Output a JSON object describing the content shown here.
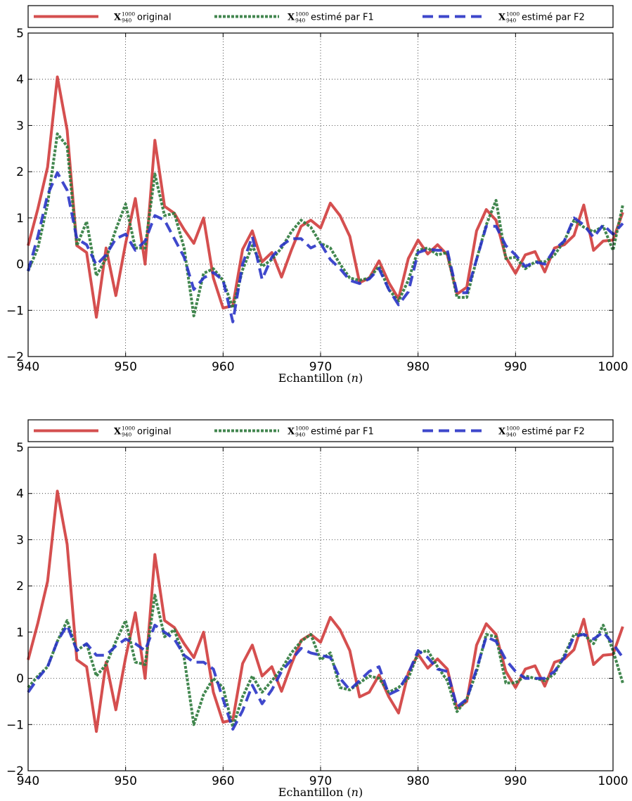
{
  "chart_data": [
    {
      "type": "line",
      "xlabel": "Echantillon (n)",
      "ylabel": "",
      "xlim": [
        940,
        1000
      ],
      "ylim": [
        -2,
        5
      ],
      "x_ticks": [
        "940",
        "950",
        "960",
        "970",
        "980",
        "990",
        "1000"
      ],
      "y_ticks": [
        "−2",
        "−1",
        "0",
        "1",
        "2",
        "3",
        "4",
        "5"
      ],
      "grid": true,
      "legend_position": "top",
      "x_start": 940,
      "series": [
        {
          "name": "X₉₄₀¹⁰⁰⁰ original",
          "legend_symbol": "X",
          "legend_sup": "1000",
          "legend_sub": "940",
          "legend_text": "original",
          "color": "#d03c3c",
          "dash": "solid",
          "values": [
            0.4,
            1.2,
            2.1,
            4.05,
            2.9,
            0.4,
            0.25,
            -1.15,
            0.35,
            -0.68,
            0.45,
            1.42,
            0.0,
            2.68,
            1.25,
            1.1,
            0.75,
            0.45,
            1.0,
            -0.3,
            -0.95,
            -0.9,
            0.32,
            0.72,
            0.05,
            0.25,
            -0.28,
            0.3,
            0.82,
            0.95,
            0.78,
            1.32,
            1.05,
            0.6,
            -0.4,
            -0.3,
            0.07,
            -0.4,
            -0.75,
            0.12,
            0.52,
            0.22,
            0.42,
            0.2,
            -0.65,
            -0.5,
            0.72,
            1.18,
            0.95,
            0.15,
            -0.2,
            0.2,
            0.27,
            -0.17,
            0.35,
            0.42,
            0.62,
            1.28,
            0.3,
            0.5,
            0.52,
            1.12
          ]
        },
        {
          "name": "X₉₄₀¹⁰⁰⁰ estimé par F1",
          "legend_symbol": "X",
          "legend_sup": "1000",
          "legend_sub": "940",
          "legend_text": "estimé par F1",
          "color": "#2e7a3c",
          "dash": "dotted",
          "values": [
            -0.15,
            0.35,
            1.3,
            2.82,
            2.55,
            0.4,
            0.92,
            -0.25,
            0.12,
            0.75,
            1.3,
            0.35,
            0.35,
            1.95,
            1.05,
            1.1,
            0.35,
            -1.12,
            -0.2,
            -0.1,
            -0.35,
            -0.95,
            -0.12,
            0.4,
            -0.05,
            0.1,
            0.35,
            0.7,
            0.95,
            0.8,
            0.45,
            0.35,
            0.0,
            -0.3,
            -0.35,
            -0.3,
            -0.05,
            -0.55,
            -0.8,
            -0.35,
            0.3,
            0.35,
            0.2,
            0.25,
            -0.72,
            -0.72,
            0.1,
            0.85,
            1.38,
            0.12,
            0.15,
            -0.1,
            0.05,
            0.05,
            0.2,
            0.5,
            0.95,
            0.8,
            0.7,
            0.82,
            0.3,
            1.28
          ]
        },
        {
          "name": "X₉₄₀¹⁰⁰⁰ estimé par F2",
          "legend_symbol": "X",
          "legend_sup": "1000",
          "legend_sub": "940",
          "legend_text": "estimé par F2",
          "color": "#2a34c6",
          "dash": "dashed",
          "values": [
            -0.15,
            0.6,
            1.5,
            1.98,
            1.6,
            0.55,
            0.42,
            -0.02,
            0.2,
            0.55,
            0.65,
            0.3,
            0.5,
            1.05,
            0.95,
            0.55,
            0.15,
            -0.55,
            -0.3,
            -0.18,
            -0.35,
            -1.25,
            0.0,
            0.6,
            -0.33,
            0.15,
            0.4,
            0.55,
            0.55,
            0.35,
            0.45,
            0.1,
            -0.1,
            -0.35,
            -0.42,
            -0.32,
            -0.1,
            -0.55,
            -0.88,
            -0.6,
            0.25,
            0.32,
            0.3,
            0.3,
            -0.62,
            -0.62,
            0.1,
            0.82,
            0.82,
            0.4,
            0.2,
            -0.05,
            0.05,
            0.0,
            0.32,
            0.5,
            1.0,
            0.85,
            0.58,
            0.85,
            0.65,
            0.88
          ]
        }
      ]
    },
    {
      "type": "line",
      "xlabel": "Echantillon (n)",
      "ylabel": "",
      "xlim": [
        940,
        1000
      ],
      "ylim": [
        -2,
        5
      ],
      "x_ticks": [
        "940",
        "950",
        "960",
        "970",
        "980",
        "990",
        "1000"
      ],
      "y_ticks": [
        "−2",
        "−1",
        "0",
        "1",
        "2",
        "3",
        "4",
        "5"
      ],
      "grid": true,
      "legend_position": "top",
      "x_start": 940,
      "series": [
        {
          "name": "X₉₄₀¹⁰⁰⁰ original",
          "legend_symbol": "X",
          "legend_sup": "1000",
          "legend_sub": "940",
          "legend_text": "original",
          "color": "#d03c3c",
          "dash": "solid",
          "values": [
            0.4,
            1.2,
            2.1,
            4.05,
            2.9,
            0.4,
            0.25,
            -1.15,
            0.35,
            -0.68,
            0.45,
            1.42,
            0.0,
            2.68,
            1.25,
            1.1,
            0.75,
            0.45,
            1.0,
            -0.3,
            -0.95,
            -0.9,
            0.32,
            0.72,
            0.05,
            0.25,
            -0.28,
            0.3,
            0.82,
            0.95,
            0.78,
            1.32,
            1.05,
            0.6,
            -0.4,
            -0.3,
            0.07,
            -0.4,
            -0.75,
            0.12,
            0.52,
            0.22,
            0.42,
            0.2,
            -0.65,
            -0.5,
            0.72,
            1.18,
            0.95,
            0.15,
            -0.2,
            0.2,
            0.27,
            -0.17,
            0.35,
            0.42,
            0.62,
            1.28,
            0.3,
            0.5,
            0.52,
            1.12
          ]
        },
        {
          "name": "X₉₄₀¹⁰⁰⁰ estimé par F1",
          "legend_symbol": "X",
          "legend_sup": "1000",
          "legend_sub": "940",
          "legend_text": "estimé par F1",
          "color": "#2e7a3c",
          "dash": "dotted",
          "values": [
            -0.2,
            0.05,
            0.25,
            0.8,
            1.25,
            0.6,
            0.75,
            0.05,
            0.3,
            0.8,
            1.25,
            0.35,
            0.3,
            1.8,
            0.9,
            1.05,
            0.45,
            -1.0,
            -0.35,
            0.0,
            -0.2,
            -1.05,
            -0.4,
            0.05,
            -0.3,
            -0.05,
            0.2,
            0.55,
            0.8,
            0.95,
            0.4,
            0.55,
            -0.2,
            -0.25,
            -0.1,
            0.05,
            0.0,
            -0.3,
            -0.2,
            0.0,
            0.55,
            0.6,
            0.25,
            -0.05,
            -0.72,
            -0.45,
            0.15,
            0.95,
            0.9,
            -0.1,
            -0.1,
            0.05,
            0.0,
            -0.05,
            0.1,
            0.5,
            0.95,
            0.95,
            0.75,
            1.15,
            0.6,
            -0.1
          ]
        },
        {
          "name": "X₉₄₀¹⁰⁰⁰ estimé par F2",
          "legend_symbol": "X",
          "legend_sup": "1000",
          "legend_sub": "940",
          "legend_text": "estimé par F2",
          "color": "#2a34c6",
          "dash": "dashed",
          "values": [
            -0.3,
            0.0,
            0.25,
            0.8,
            1.15,
            0.6,
            0.75,
            0.5,
            0.5,
            0.7,
            0.85,
            0.75,
            0.6,
            1.15,
            1.0,
            0.85,
            0.5,
            0.35,
            0.35,
            0.2,
            -0.45,
            -1.1,
            -0.7,
            -0.15,
            -0.55,
            -0.25,
            0.15,
            0.4,
            0.65,
            0.55,
            0.5,
            0.45,
            0.0,
            -0.25,
            -0.05,
            0.15,
            0.25,
            -0.35,
            -0.25,
            0.1,
            0.6,
            0.45,
            0.2,
            0.15,
            -0.62,
            -0.45,
            0.2,
            0.9,
            0.8,
            0.4,
            0.15,
            0.0,
            0.0,
            0.0,
            0.15,
            0.45,
            0.9,
            0.95,
            0.85,
            1.0,
            0.75,
            0.45
          ]
        }
      ]
    }
  ]
}
